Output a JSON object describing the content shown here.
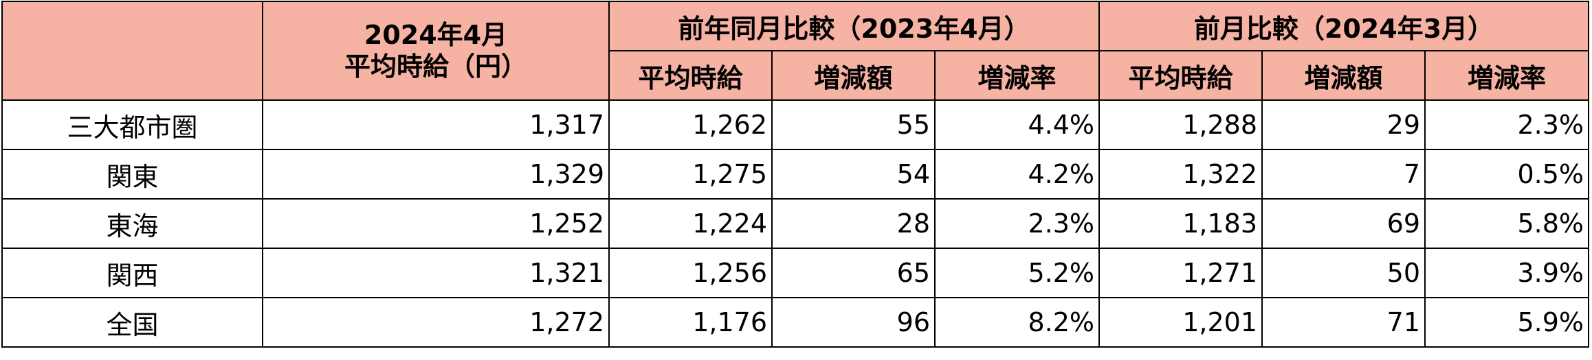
{
  "table": {
    "header": {
      "first": [
        "2024年4月",
        "平均時給（円）"
      ],
      "groups": [
        {
          "title": "前年同月比較（2023年4月）",
          "columns": [
            "平均時給",
            "増減額",
            "増減率"
          ]
        },
        {
          "title": "前月比較（2024年3月）",
          "columns": [
            "平均時給",
            "増減額",
            "増減率"
          ]
        }
      ]
    },
    "rows": [
      {
        "label": "三大都市圏",
        "cells": [
          "1,317",
          "1,262",
          "55",
          "4.4%",
          "1,288",
          "29",
          "2.3%"
        ]
      },
      {
        "label": "関東",
        "cells": [
          "1,329",
          "1,275",
          "54",
          "4.2%",
          "1,322",
          "7",
          "0.5%"
        ]
      },
      {
        "label": "東海",
        "cells": [
          "1,252",
          "1,224",
          "28",
          "2.3%",
          "1,183",
          "69",
          "5.8%"
        ]
      },
      {
        "label": "関西",
        "cells": [
          "1,321",
          "1,256",
          "65",
          "5.2%",
          "1,271",
          "50",
          "3.9%"
        ]
      },
      {
        "label": "全国",
        "cells": [
          "1,272",
          "1,176",
          "96",
          "8.2%",
          "1,201",
          "71",
          "5.9%"
        ]
      }
    ]
  }
}
